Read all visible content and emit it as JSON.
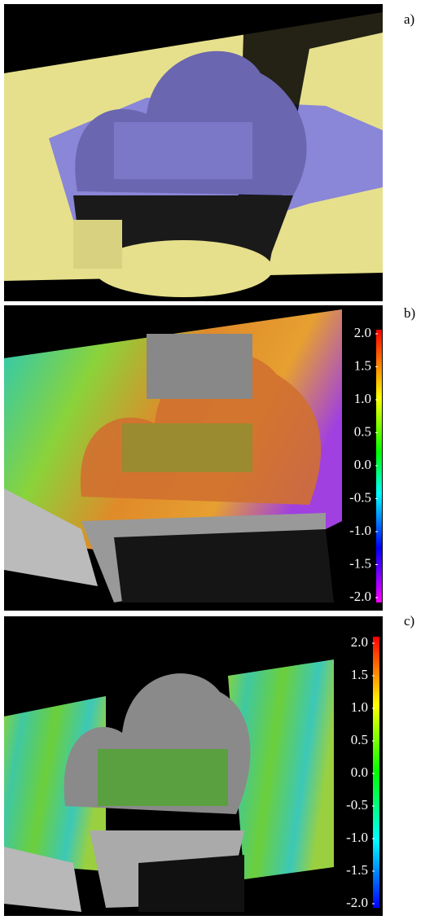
{
  "panels": [
    {
      "label": "a)"
    },
    {
      "label": "b)",
      "colorbar": {
        "ticks": [
          {
            "value": 2,
            "label": "2.0"
          },
          {
            "value": 1.5,
            "label": "1.5"
          },
          {
            "value": 1,
            "label": "1.0"
          },
          {
            "value": 0.5,
            "label": "0.5"
          },
          {
            "value": 0,
            "label": "0.0"
          },
          {
            "value": -0.5,
            "label": "-0.5"
          },
          {
            "value": -1,
            "label": "-1.0"
          },
          {
            "value": -1.5,
            "label": "-1.5"
          },
          {
            "value": -2,
            "label": "-2.0"
          }
        ]
      }
    },
    {
      "label": "c)",
      "colorbar": {
        "ticks": [
          {
            "value": 2,
            "label": "2.0"
          },
          {
            "value": 1.5,
            "label": "1.5"
          },
          {
            "value": 1,
            "label": "1.0"
          },
          {
            "value": 0.5,
            "label": "0.5"
          },
          {
            "value": 0,
            "label": "0.0"
          },
          {
            "value": -0.5,
            "label": "-0.5"
          },
          {
            "value": -1,
            "label": "-1.0"
          },
          {
            "value": -1.5,
            "label": "-1.5"
          },
          {
            "value": -2,
            "label": "-2.0"
          }
        ]
      }
    }
  ]
}
